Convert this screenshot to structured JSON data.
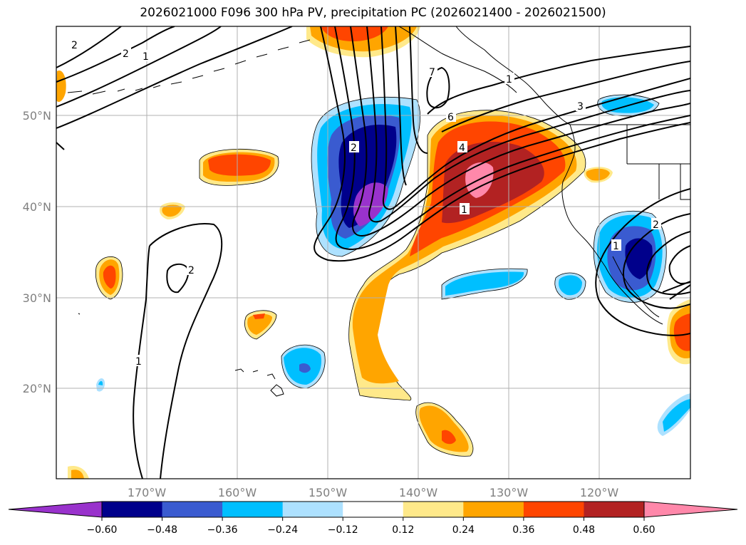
{
  "title": "2026021000 F096 300 hPa PV, precipitation PC (2026021400 - 2026021500)",
  "map": {
    "lon_labels": [
      "170°W",
      "160°W",
      "150°W",
      "140°W",
      "130°W",
      "120°W"
    ],
    "lat_labels": [
      "50°N",
      "40°N",
      "30°N",
      "20°N"
    ],
    "contour_labels": [
      "2",
      "1",
      "2",
      "1",
      "7",
      "3",
      "4",
      "1",
      "2",
      "1",
      "6",
      "2",
      "1",
      "2"
    ]
  },
  "colorbar": {
    "colors": [
      "#9932CC",
      "#00008B",
      "#3A5BD0",
      "#00BFFF",
      "#ADE1FF",
      "#FFFFFF",
      "#FFE98A",
      "#FFA500",
      "#FF4500",
      "#B22222",
      "#FF88AA",
      "#FF88AA"
    ],
    "ticks": [
      "−0.60",
      "−0.48",
      "−0.36",
      "−0.24",
      "−0.12",
      "0.12",
      "0.24",
      "0.36",
      "0.48",
      "0.60"
    ]
  }
}
